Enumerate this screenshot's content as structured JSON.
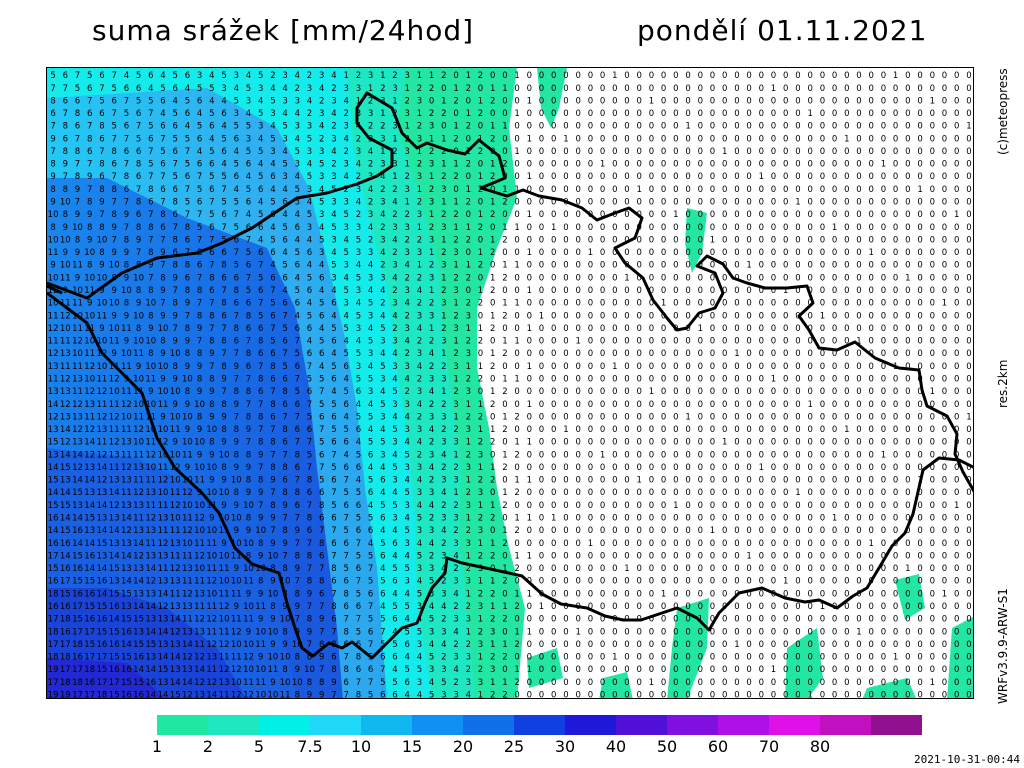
{
  "header": {
    "title": "suma srážek [mm/24hod]",
    "date": "pondělí 01.11.2021"
  },
  "side_labels": {
    "credit": "(c)meteopress",
    "resolution": "res.2km",
    "model": "WRFv3.9.9-ARW-S1"
  },
  "legend": {
    "labels": [
      "1",
      "2",
      "5",
      "7.5",
      "10",
      "15",
      "20",
      "25",
      "30",
      "40",
      "50",
      "60",
      "70",
      "80"
    ],
    "colors": [
      "#20e8a0",
      "#1fe8c0",
      "#00f0e8",
      "#20d8f8",
      "#10b8f0",
      "#1090f0",
      "#1070e8",
      "#1040e0",
      "#2018d8",
      "#5010d8",
      "#8010e0",
      "#b010e8",
      "#e010e8",
      "#c010c0",
      "#901090"
    ]
  },
  "timestamp": "2021-10-31-00:44"
}
